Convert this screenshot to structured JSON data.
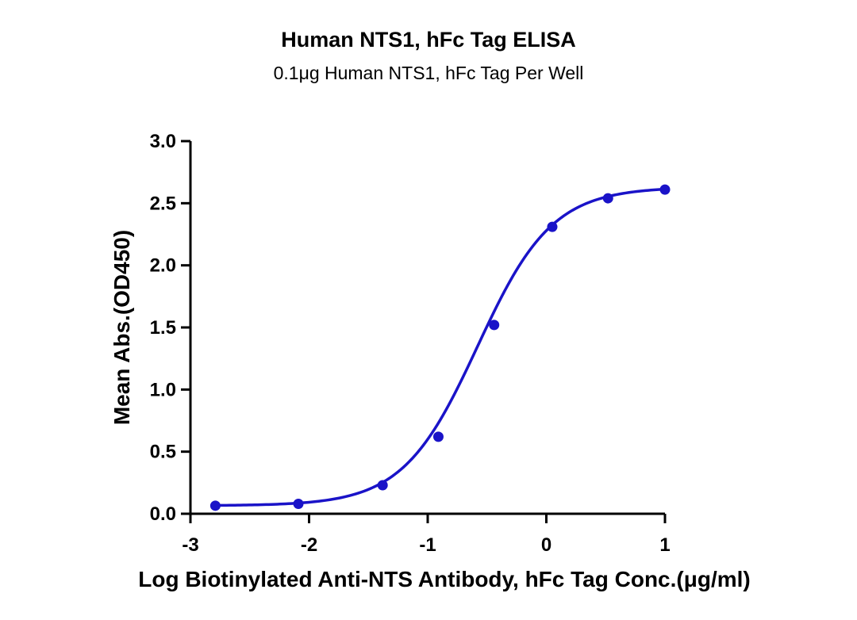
{
  "chart_data": {
    "type": "scatter",
    "title": "Human NTS1, hFc Tag ELISA",
    "subtitle": "0.1μg Human NTS1, hFc Tag Per Well",
    "xlabel": "Log Biotinylated Anti-NTS Antibody, hFc Tag Conc.(μg/ml)",
    "ylabel": "Mean Abs.(OD450)",
    "xlim": [
      -3,
      1
    ],
    "ylim": [
      0,
      3
    ],
    "x_ticks": [
      -3,
      -2,
      -1,
      0,
      1
    ],
    "x_tick_labels": [
      "-3",
      "-2",
      "-1",
      "0",
      "1"
    ],
    "y_ticks": [
      0,
      0.5,
      1,
      1.5,
      2,
      2.5,
      3
    ],
    "y_tick_labels": [
      "0.0",
      "0.5",
      "1.0",
      "1.5",
      "2.0",
      "2.5",
      "3.0"
    ],
    "grid": false,
    "color": "#1a13c8",
    "series": [
      {
        "x": [
          -2.79,
          -2.09,
          -1.38,
          -0.91,
          -0.44,
          0.05,
          0.52,
          1.0
        ],
        "y": [
          0.065,
          0.08,
          0.23,
          0.62,
          1.52,
          2.31,
          2.54,
          2.61
        ],
        "fit": "sigmoidal"
      }
    ]
  }
}
